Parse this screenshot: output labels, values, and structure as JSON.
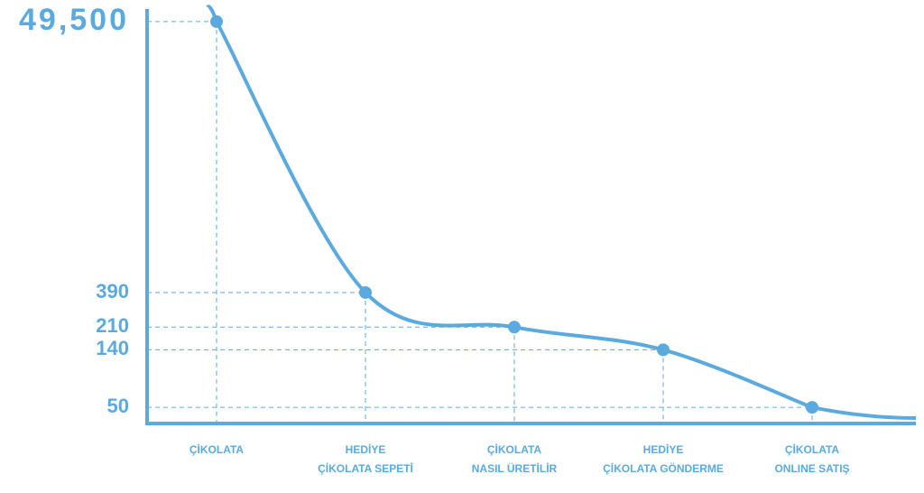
{
  "chart_data": {
    "type": "line",
    "categories": [
      "ÇİKOLATA",
      "HEDİYE\nÇİKOLATA SEPETİ",
      "ÇİKOLATA\nNASIL ÜRETİLİR",
      "HEDİYE\nÇİKOLATA GÖNDERME",
      "ÇİKOLATA\nONLINE SATIŞ"
    ],
    "values": [
      49500,
      390,
      210,
      140,
      50
    ],
    "color": "#5aaae0",
    "log_scale": true,
    "ylim": [
      40,
      60000
    ],
    "yticks": [
      50,
      140,
      210,
      390,
      {
        "value": 49500,
        "label": "49,500"
      }
    ],
    "grid": true
  }
}
